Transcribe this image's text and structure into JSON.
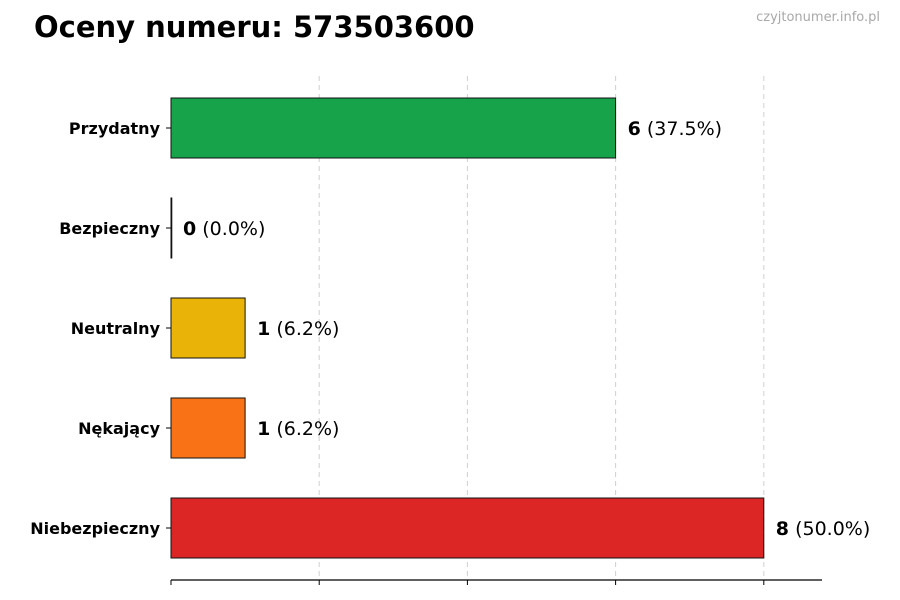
{
  "header": {
    "title": "Oceny numeru: 573503600",
    "watermark": "czyjtonumer.info.pl"
  },
  "chart_data": {
    "type": "bar",
    "orientation": "horizontal",
    "title": "Oceny numeru: 573503600",
    "xlabel": "",
    "ylabel": "",
    "xlim": [
      0,
      11
    ],
    "grid": "vertical dashed",
    "categories": [
      "Przydatny",
      "Bezpieczny",
      "Neutralny",
      "Nękający",
      "Niebezpieczny"
    ],
    "values": [
      6,
      0,
      1,
      1,
      8
    ],
    "percent_labels": [
      "(37.5%)",
      "(0.0%)",
      "(6.2%)",
      "(6.2%)",
      "(50.0%)"
    ],
    "colors": [
      "#16a34a",
      "#16a34a",
      "#eab308",
      "#f97316",
      "#dc2626"
    ]
  }
}
